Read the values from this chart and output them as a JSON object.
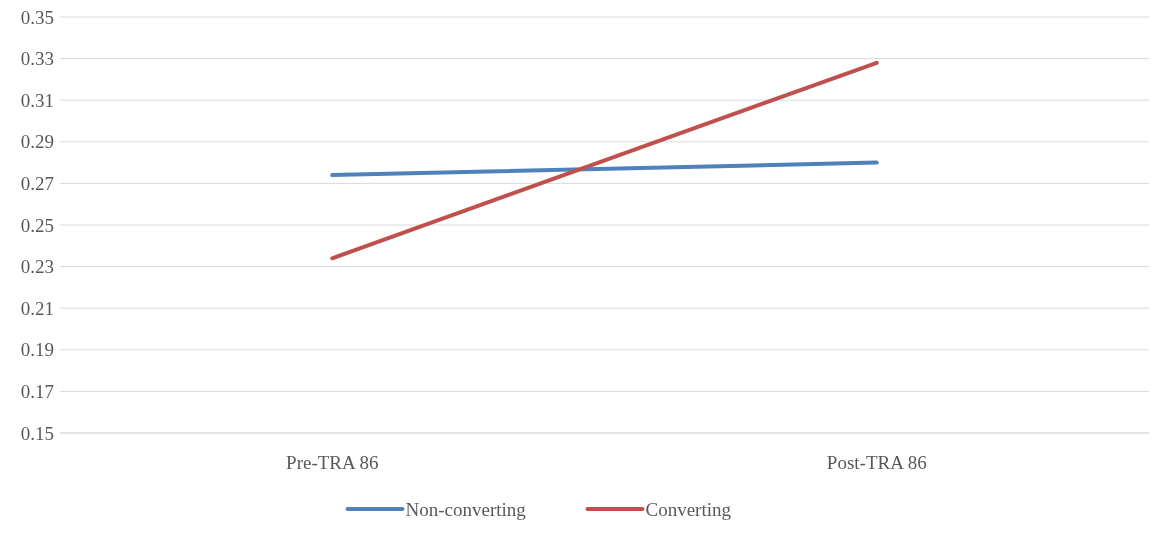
{
  "chart_data": {
    "type": "line",
    "categories": [
      "Pre-TRA 86",
      "Post-TRA 86"
    ],
    "series": [
      {
        "name": "Non-converting",
        "color": "#4f81bd",
        "values": [
          0.274,
          0.28
        ]
      },
      {
        "name": "Converting",
        "color": "#c0504d",
        "values": [
          0.234,
          0.328
        ]
      }
    ],
    "ylim": [
      0.15,
      0.35
    ],
    "yticks": [
      0.15,
      0.17,
      0.19,
      0.21,
      0.23,
      0.25,
      0.27,
      0.29,
      0.31,
      0.33,
      0.35
    ],
    "grid": "y",
    "legend": "bottom",
    "marker": "none",
    "line_style": "solid"
  }
}
